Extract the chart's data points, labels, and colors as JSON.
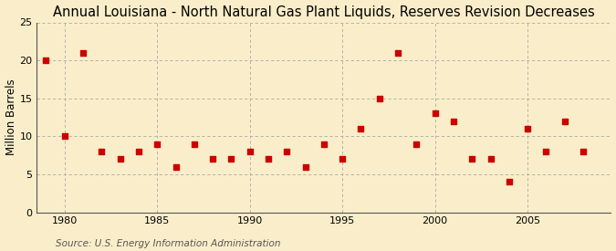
{
  "title": "Annual Louisiana - North Natural Gas Plant Liquids, Reserves Revision Decreases",
  "ylabel": "Million Barrels",
  "source": "Source: U.S. Energy Information Administration",
  "years": [
    1979,
    1980,
    1981,
    1982,
    1983,
    1984,
    1985,
    1986,
    1987,
    1988,
    1989,
    1990,
    1991,
    1992,
    1993,
    1994,
    1995,
    1996,
    1997,
    1998,
    1999,
    2000,
    2001,
    2002,
    2003,
    2004,
    2005,
    2006,
    2007,
    2008
  ],
  "values": [
    20,
    10,
    21,
    8,
    7,
    8,
    9,
    6,
    9,
    7,
    7,
    8,
    7,
    8,
    6,
    9,
    7,
    11,
    15,
    21,
    9,
    13,
    12,
    7,
    7,
    4,
    11,
    8,
    12,
    8
  ],
  "marker_color": "#cc0000",
  "marker_size": 4,
  "background_color": "#faeeca",
  "grid_color": "#aaaaaa",
  "xlim": [
    1978.5,
    2009.5
  ],
  "ylim": [
    0,
    25
  ],
  "yticks": [
    0,
    5,
    10,
    15,
    20,
    25
  ],
  "xticks": [
    1980,
    1985,
    1990,
    1995,
    2000,
    2005
  ],
  "title_fontsize": 10.5,
  "label_fontsize": 8.5,
  "tick_fontsize": 8,
  "source_fontsize": 7.5
}
